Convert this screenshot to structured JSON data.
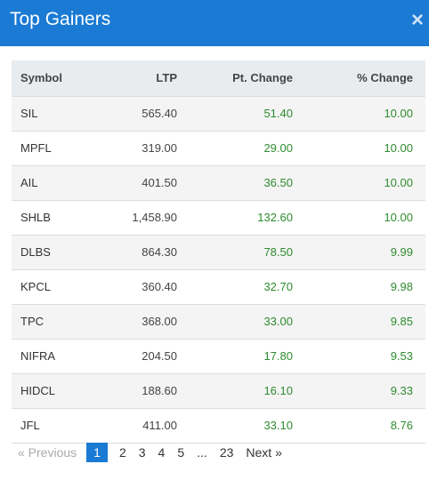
{
  "modal": {
    "title": "Top Gainers",
    "close_label": "×"
  },
  "table": {
    "headers": {
      "symbol": "Symbol",
      "ltp": "LTP",
      "change": "Pt. Change",
      "pct": "% Change"
    },
    "rows": [
      {
        "symbol": "SIL",
        "ltp": "565.40",
        "change": "51.40",
        "pct": "10.00"
      },
      {
        "symbol": "MPFL",
        "ltp": "319.00",
        "change": "29.00",
        "pct": "10.00"
      },
      {
        "symbol": "AIL",
        "ltp": "401.50",
        "change": "36.50",
        "pct": "10.00"
      },
      {
        "symbol": "SHLB",
        "ltp": "1,458.90",
        "change": "132.60",
        "pct": "10.00"
      },
      {
        "symbol": "DLBS",
        "ltp": "864.30",
        "change": "78.50",
        "pct": "9.99"
      },
      {
        "symbol": "KPCL",
        "ltp": "360.40",
        "change": "32.70",
        "pct": "9.98"
      },
      {
        "symbol": "TPC",
        "ltp": "368.00",
        "change": "33.00",
        "pct": "9.85"
      },
      {
        "symbol": "NIFRA",
        "ltp": "204.50",
        "change": "17.80",
        "pct": "9.53"
      },
      {
        "symbol": "HIDCL",
        "ltp": "188.60",
        "change": "16.10",
        "pct": "9.33"
      },
      {
        "symbol": "JFL",
        "ltp": "411.00",
        "change": "33.10",
        "pct": "8.76"
      }
    ]
  },
  "pagination": {
    "previous": "« Previous",
    "pages": [
      "1",
      "2",
      "3",
      "4",
      "5"
    ],
    "active": "1",
    "ellipsis": "...",
    "last": "23",
    "next": "Next »"
  },
  "colors": {
    "header_bg": "#1a7ad4",
    "positive": "#2e8b2e"
  }
}
